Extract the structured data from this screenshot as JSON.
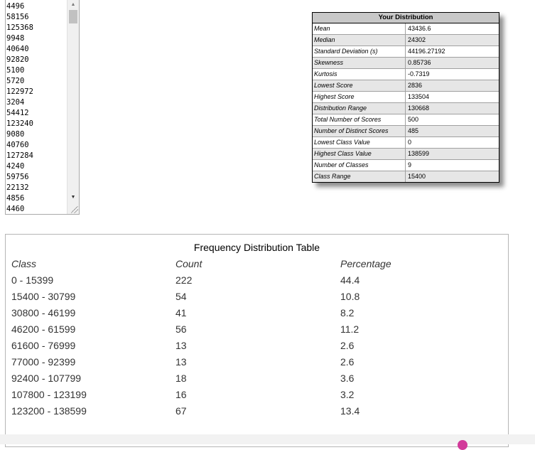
{
  "data_input": {
    "lines": [
      "4496",
      "58156",
      "125368",
      "9948",
      "40640",
      "92820",
      "5100",
      "5720",
      "122972",
      "3204",
      "54412",
      "123240",
      "9080",
      "40760",
      "127284",
      "4240",
      "59756",
      "22132",
      "4856",
      "4460"
    ]
  },
  "distribution": {
    "title": "Your Distribution",
    "rows": [
      {
        "label": "Mean",
        "value": "43436.6"
      },
      {
        "label": "Median",
        "value": "24302"
      },
      {
        "label": "Standard Deviation (s)",
        "value": "44196.27192"
      },
      {
        "label": "Skewness",
        "value": "0.85736"
      },
      {
        "label": "Kurtosis",
        "value": "-0.7319"
      },
      {
        "label": "Lowest Score",
        "value": "2836"
      },
      {
        "label": "Highest Score",
        "value": "133504"
      },
      {
        "label": "Distribution Range",
        "value": "130668"
      },
      {
        "label": "Total Number of Scores",
        "value": "500"
      },
      {
        "label": "Number of Distinct Scores",
        "value": "485"
      },
      {
        "label": "Lowest Class Value",
        "value": "0"
      },
      {
        "label": "Highest Class Value",
        "value": "138599"
      },
      {
        "label": "Number of Classes",
        "value": "9"
      },
      {
        "label": "Class Range",
        "value": "15400"
      }
    ]
  },
  "frequency_table": {
    "title": "Frequency Distribution Table",
    "headers": {
      "class": "Class",
      "count": "Count",
      "percentage": "Percentage"
    },
    "rows": [
      {
        "class": "0 - 15399",
        "count": "222",
        "percentage": "44.4"
      },
      {
        "class": "15400 - 30799",
        "count": "54",
        "percentage": "10.8"
      },
      {
        "class": "30800 - 46199",
        "count": "41",
        "percentage": "8.2"
      },
      {
        "class": "46200 - 61599",
        "count": "56",
        "percentage": "11.2"
      },
      {
        "class": "61600 - 76999",
        "count": "13",
        "percentage": "2.6"
      },
      {
        "class": "77000 - 92399",
        "count": "13",
        "percentage": "2.6"
      },
      {
        "class": "92400 - 107799",
        "count": "18",
        "percentage": "3.6"
      },
      {
        "class": "107800 - 123199",
        "count": "16",
        "percentage": "3.2"
      },
      {
        "class": "123200 - 138599",
        "count": "67",
        "percentage": "13.4"
      }
    ]
  }
}
